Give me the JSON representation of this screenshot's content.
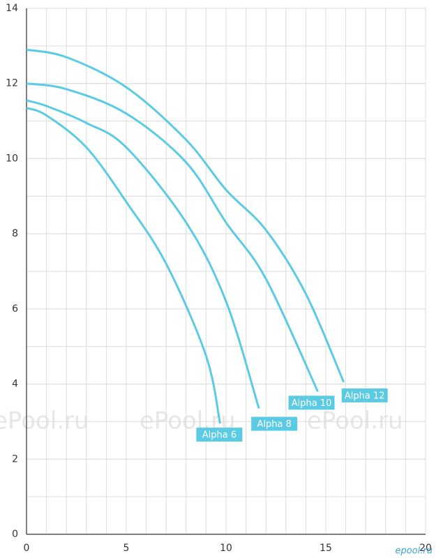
{
  "chart_data": {
    "type": "line",
    "series": [
      {
        "name": "Alpha 6",
        "color": "#5bcbe3",
        "x": [
          0,
          1,
          3,
          5,
          7,
          9,
          9.7
        ],
        "values": [
          11.35,
          11.15,
          10.3,
          8.85,
          7.2,
          4.75,
          2.95
        ]
      },
      {
        "name": "Alpha 8",
        "color": "#5bcbe3",
        "x": [
          0,
          1,
          3,
          5,
          8,
          10,
          11.65
        ],
        "values": [
          11.55,
          11.4,
          10.95,
          10.3,
          8.3,
          6.2,
          3.35
        ]
      },
      {
        "name": "Alpha 10",
        "color": "#5bcbe3",
        "x": [
          0,
          2,
          5,
          8,
          10,
          12,
          14.6
        ],
        "values": [
          12.0,
          11.85,
          11.2,
          9.9,
          8.3,
          6.8,
          3.8
        ]
      },
      {
        "name": "Alpha 12",
        "color": "#5bcbe3",
        "x": [
          0,
          2,
          5,
          8,
          10,
          12,
          14,
          15.9
        ],
        "values": [
          12.9,
          12.7,
          11.9,
          10.5,
          9.17,
          8.1,
          6.4,
          4.05
        ]
      }
    ],
    "xlim": [
      0,
      20
    ],
    "xticks": [
      0,
      5,
      10,
      15,
      20
    ],
    "ylim": [
      0,
      14
    ],
    "yticks": [
      0,
      2,
      4,
      6,
      8,
      10,
      12,
      14
    ],
    "grid": true,
    "watermark": "ePool.ru",
    "logo": "epool.ru"
  }
}
